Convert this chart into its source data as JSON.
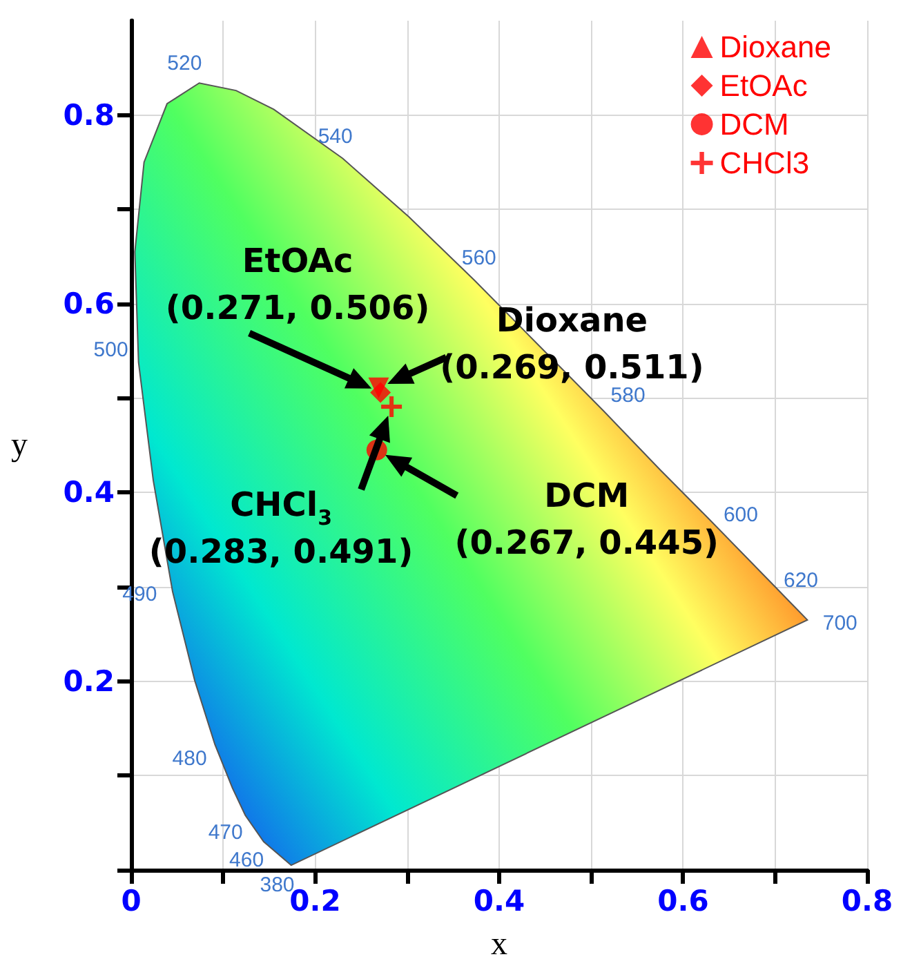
{
  "chart_data": {
    "type": "scatter",
    "xlabel": "x",
    "ylabel": "y",
    "xlim": [
      0,
      0.8
    ],
    "ylim": [
      0,
      0.9
    ],
    "xticks": [
      0,
      {
        "value": 0.1,
        "label": null
      },
      0.2,
      {
        "value": 0.3,
        "label": null
      },
      0.4,
      {
        "value": 0.5,
        "label": null
      },
      0.6,
      {
        "value": 0.7,
        "label": null
      },
      0.8
    ],
    "yticks": [
      {
        "value": 0,
        "label": null
      },
      {
        "value": 0.1,
        "label": null
      },
      0.2,
      {
        "value": 0.3,
        "label": null
      },
      0.4,
      {
        "value": 0.5,
        "label": null
      },
      0.6,
      {
        "value": 0.7,
        "label": null
      },
      0.8
    ],
    "grid": true,
    "legend": "top right",
    "series": [
      {
        "type": "area",
        "color": "#555555",
        "x": [
          0.174,
          0.144,
          0.124,
          0.11,
          0.091,
          0.069,
          0.045,
          0.024,
          0.008,
          0.004,
          0.014,
          0.039,
          0.074,
          0.114,
          0.155,
          0.23,
          0.302,
          0.373,
          0.444,
          0.513,
          0.575,
          0.627,
          0.692,
          0.719,
          0.735
        ],
        "values": [
          0.005,
          0.03,
          0.058,
          0.087,
          0.133,
          0.201,
          0.295,
          0.413,
          0.538,
          0.655,
          0.75,
          0.812,
          0.834,
          0.826,
          0.806,
          0.754,
          0.692,
          0.625,
          0.555,
          0.487,
          0.424,
          0.373,
          0.308,
          0.281,
          0.265
        ]
      },
      {
        "name": "Dioxane",
        "color": "#ff0000",
        "marker": "triangle",
        "x": [
          0.269
        ],
        "values": [
          0.511
        ]
      },
      {
        "name": "EtOAc",
        "color": "#ff0000",
        "marker": "diamond",
        "x": [
          0.271
        ],
        "values": [
          0.506
        ]
      },
      {
        "name": "DCM",
        "color": "#ff0000",
        "marker": "circle",
        "x": [
          0.267
        ],
        "values": [
          0.445
        ]
      },
      {
        "name": "CHCl3",
        "color": "#ff0000",
        "marker": "cross",
        "x": [
          0.283
        ],
        "values": [
          0.491
        ]
      }
    ],
    "annotations": [
      {
        "text": "EtOAc\n(0.271, 0.506)",
        "x": 0.271,
        "y": 0.506
      },
      {
        "text": "Dioxane\n(0.269, 0.511)",
        "x": 0.269,
        "y": 0.511
      },
      {
        "text": "DCM\n(0.267, 0.445)",
        "x": 0.267,
        "y": 0.445
      },
      {
        "text": "CHCl$_{3}$\n(0.283, 0.491)",
        "x": 0.283,
        "y": 0.491
      },
      {
        "text": "520",
        "x": 0.074,
        "y": 0.834
      },
      {
        "text": "540",
        "x": 0.23,
        "y": 0.754
      },
      {
        "text": "560",
        "x": 0.373,
        "y": 0.625
      },
      {
        "text": "580",
        "x": 0.513,
        "y": 0.487
      },
      {
        "text": "600",
        "x": 0.627,
        "y": 0.373
      },
      {
        "text": "620",
        "x": 0.692,
        "y": 0.308
      },
      {
        "text": "700",
        "x": 0.735,
        "y": 0.265
      },
      {
        "text": "500",
        "x": 0.008,
        "y": 0.538
      },
      {
        "text": "490",
        "x": 0.045,
        "y": 0.295
      },
      {
        "text": "480",
        "x": 0.091,
        "y": 0.133
      },
      {
        "text": "470",
        "x": 0.124,
        "y": 0.058
      },
      {
        "text": "460",
        "x": 0.144,
        "y": 0.03
      },
      {
        "text": "380",
        "x": 0.174,
        "y": 0.005
      }
    ]
  }
}
